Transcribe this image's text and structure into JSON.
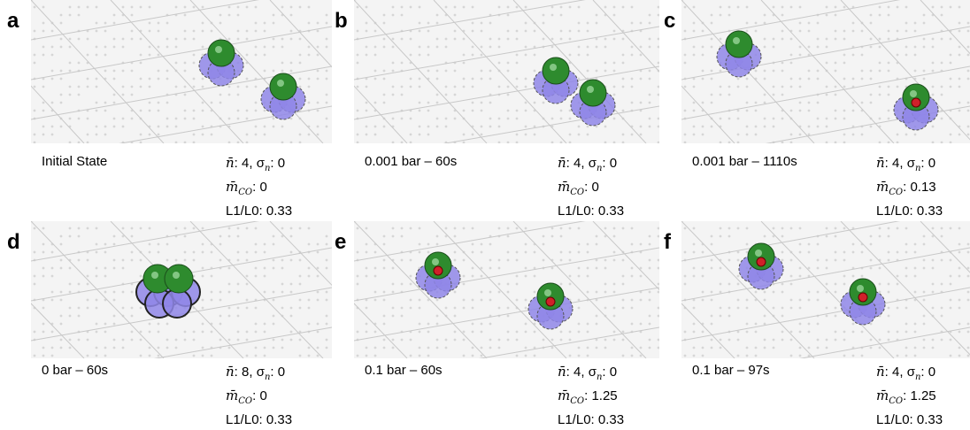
{
  "terms": {
    "n_mean": "n̄",
    "sigma": "σ",
    "sigma_sub": "n",
    "m_mean": "m̄",
    "m_sub": "CO",
    "ratio": "L1/L0",
    "sep": ": ",
    "comma": ", "
  },
  "panels": [
    {
      "letter": "a",
      "condition": "Initial State",
      "n_mean": "4",
      "sigma_n": "0",
      "m_co": "0",
      "ratio": "0.33"
    },
    {
      "letter": "b",
      "condition": "0.001 bar – 60s",
      "n_mean": "4",
      "sigma_n": "0",
      "m_co": "0",
      "ratio": "0.33"
    },
    {
      "letter": "c",
      "condition": "0.001 bar – 1110s",
      "n_mean": "4",
      "sigma_n": "0",
      "m_co": "0.13",
      "ratio": "0.33"
    },
    {
      "letter": "d",
      "condition": "0 bar – 60s",
      "n_mean": "8",
      "sigma_n": "0",
      "m_co": "0",
      "ratio": "0.33"
    },
    {
      "letter": "e",
      "condition": "0.1 bar – 60s",
      "n_mean": "4",
      "sigma_n": "0",
      "m_co": "1.25",
      "ratio": "0.33"
    },
    {
      "letter": "f",
      "condition": "0.1 bar – 97s",
      "n_mean": "4",
      "sigma_n": "0",
      "m_co": "1.25",
      "ratio": "0.33"
    }
  ]
}
